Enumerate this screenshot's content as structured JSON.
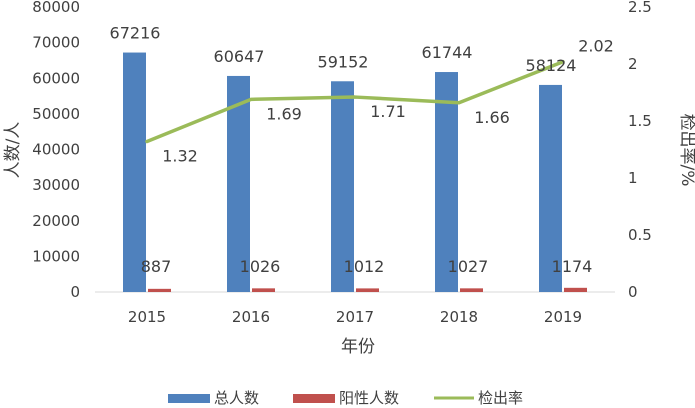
{
  "chart_data": {
    "type": "bar",
    "categories": [
      "2015",
      "2016",
      "2017",
      "2018",
      "2019"
    ],
    "xlabel": "年份",
    "ylabel": "人数/人",
    "y2label": "检出率/%",
    "ylim": [
      0,
      80000
    ],
    "y2lim": [
      0,
      2.5
    ],
    "y_ticks": [
      0,
      10000,
      20000,
      30000,
      40000,
      50000,
      60000,
      70000,
      80000
    ],
    "y2_ticks": [
      "0",
      "0.5",
      "1",
      "1.5",
      "2",
      "2.5"
    ],
    "grid": false,
    "legend_position": "bottom",
    "series": [
      {
        "name": "总人数",
        "type": "bar",
        "axis": "left",
        "color": "#4F81BD",
        "values": [
          67216,
          60647,
          59152,
          61744,
          58124
        ]
      },
      {
        "name": "阳性人数",
        "type": "bar",
        "axis": "left",
        "color": "#C0504D",
        "values": [
          887,
          1026,
          1012,
          1027,
          1174
        ]
      },
      {
        "name": "检出率",
        "type": "line",
        "axis": "right",
        "color": "#9BBB59",
        "values": [
          1.32,
          1.69,
          1.71,
          1.66,
          2.02
        ],
        "labels": [
          "1.32",
          "1.69",
          "1.71",
          "1.66",
          "2.02"
        ]
      }
    ]
  }
}
